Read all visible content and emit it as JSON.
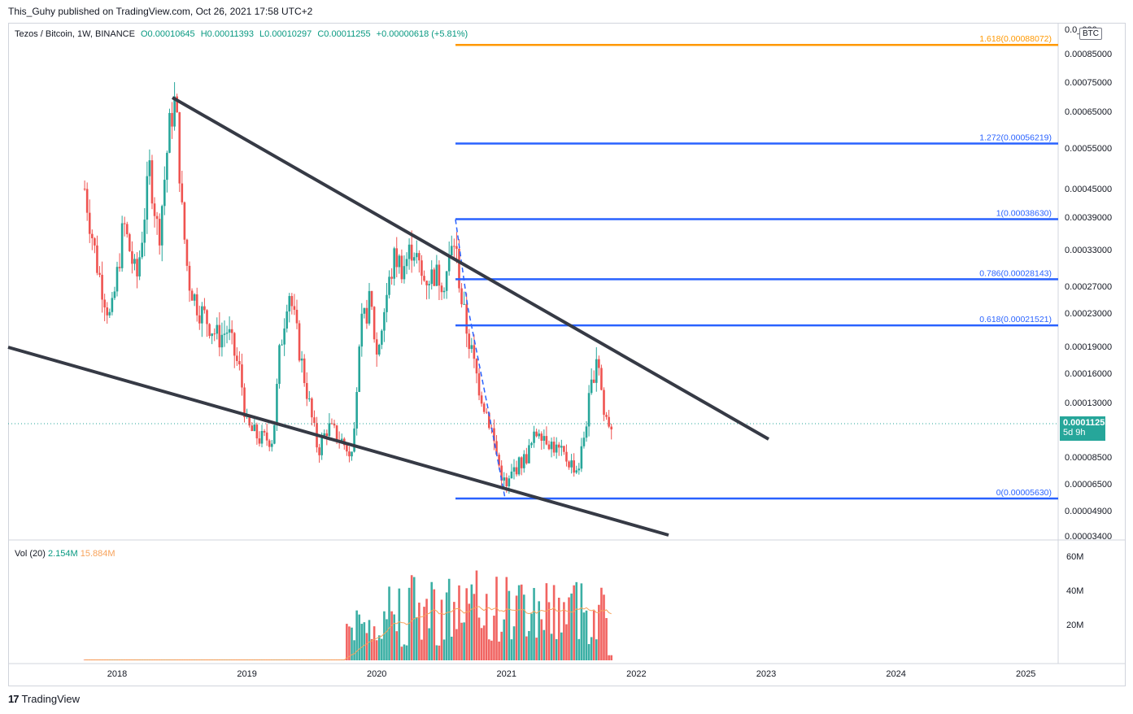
{
  "header": {
    "published": "This_Guhy published on TradingView.com, Oct 26, 2021 17:58 UTC+2"
  },
  "symbol": {
    "name": "Tezos / Bitcoin, 1W, BINANCE",
    "open": "O0.00010645",
    "high": "H0.00011393",
    "low": "L0.00010297",
    "close": "C0.00011255",
    "change": "+0.00000618 (+5.81%)"
  },
  "currency": "BTC",
  "last_price": {
    "value": "0.00011255",
    "countdown": "5d 9h"
  },
  "volume": {
    "label": "Vol (20)",
    "value": "2.154M",
    "ma": "15.884M"
  },
  "footer": {
    "brand": "TradingView",
    "logo_text": "17"
  },
  "colors": {
    "up": "#26a69a",
    "down": "#ef5350",
    "fib": "#2962ff",
    "fib_ext": "#ff9800",
    "trendline": "#363a45",
    "vol_ma": "#f7a35c"
  },
  "chart_data": {
    "type": "candlestick",
    "y_scale": "log",
    "ylim": [
      3.4e-05,
      9.5e-05
    ],
    "y_ticks": [
      {
        "value": 0.00085,
        "label": "0.00085000"
      },
      {
        "value": 0.00075,
        "label": "0.00075000"
      },
      {
        "value": 0.00065,
        "label": "0.00065000"
      },
      {
        "value": 0.00055,
        "label": "0.00055000"
      },
      {
        "value": 0.00045,
        "label": "0.00045000"
      },
      {
        "value": 0.00039,
        "label": "0.00039000"
      },
      {
        "value": 0.00033,
        "label": "0.00033000"
      },
      {
        "value": 0.00027,
        "label": "0.00027000"
      },
      {
        "value": 0.00023,
        "label": "0.00023000"
      },
      {
        "value": 0.00019,
        "label": "0.00019000"
      },
      {
        "value": 0.00016,
        "label": "0.00016000"
      },
      {
        "value": 0.00013,
        "label": "0.00013000"
      },
      {
        "value": 8.5e-05,
        "label": "0.00008500"
      },
      {
        "value": 6.5e-05,
        "label": "0.00006500"
      },
      {
        "value": 4.9e-05,
        "label": "0.00004900"
      },
      {
        "value": 3.4e-05,
        "label": "0.00003400"
      }
    ],
    "top_tick_label": "0.0_000",
    "x_ticks": [
      "2018",
      "2019",
      "2020",
      "2021",
      "2022",
      "2023",
      "2024",
      "2025"
    ],
    "fib_levels": [
      {
        "label": "1.618(0.00088072)",
        "value": 0.00088072,
        "kind": "extension"
      },
      {
        "label": "1.272(0.00056219)",
        "value": 0.00056219,
        "kind": "extension"
      },
      {
        "label": "1(0.00038630)",
        "value": 0.0003863,
        "kind": "retracement"
      },
      {
        "label": "0.786(0.00028143)",
        "value": 0.00028143,
        "kind": "retracement"
      },
      {
        "label": "0.618(0.00021521)",
        "value": 0.00021521,
        "kind": "retracement"
      },
      {
        "label": "0(0.00005630)",
        "value": 5.63e-05,
        "kind": "retracement"
      }
    ],
    "trendlines": [
      {
        "name": "upper",
        "from": [
          "2018-06",
          0.0007
        ],
        "to": [
          "2022-03",
          9e-05
        ]
      },
      {
        "name": "lower",
        "from": [
          "2017-03",
          0.00019
        ],
        "to": [
          "2022-01",
          3.6e-05
        ]
      }
    ],
    "last_close": 0.00011255,
    "volume_ticks": [
      "60M",
      "40M",
      "20M"
    ]
  }
}
